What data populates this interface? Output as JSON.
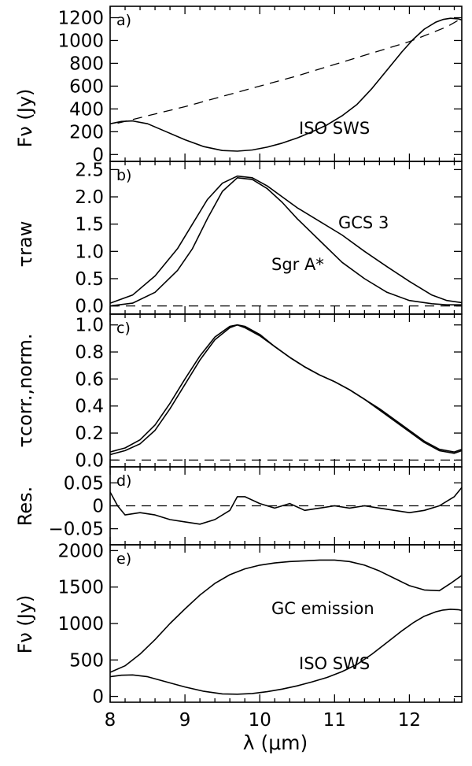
{
  "figure": {
    "xlabel": "λ (μm)",
    "x_ticks": [
      "8",
      "9",
      "10",
      "11",
      "12"
    ]
  },
  "chart_data": [
    {
      "type": "line",
      "panel": "a)",
      "ylabel": "Fν (Jy)",
      "xlim": [
        8,
        12.7
      ],
      "ylim": [
        -60,
        1300
      ],
      "yticks": [
        0,
        200,
        400,
        600,
        800,
        1000,
        1200
      ],
      "ytick_labels": [
        "0",
        "200",
        "400",
        "600",
        "800",
        "1000",
        "1200"
      ],
      "annotations": [
        "ISO SWS"
      ],
      "series": [
        {
          "name": "ISO SWS",
          "style": "solid",
          "x": [
            8.0,
            8.15,
            8.3,
            8.5,
            8.75,
            9.0,
            9.25,
            9.5,
            9.7,
            9.9,
            10.1,
            10.3,
            10.5,
            10.7,
            10.9,
            11.1,
            11.3,
            11.5,
            11.7,
            11.9,
            12.05,
            12.2,
            12.35,
            12.45,
            12.55,
            12.65,
            12.7
          ],
          "y": [
            270,
            290,
            295,
            270,
            200,
            130,
            70,
            35,
            30,
            40,
            65,
            100,
            145,
            200,
            260,
            340,
            440,
            580,
            740,
            900,
            1010,
            1100,
            1160,
            1185,
            1195,
            1190,
            1180
          ]
        },
        {
          "name": "",
          "style": "dashed",
          "x": [
            8.1,
            8.5,
            9.0,
            9.5,
            10.0,
            10.5,
            11.0,
            11.5,
            12.0,
            12.5,
            12.7
          ],
          "y": [
            275,
            340,
            420,
            510,
            600,
            690,
            790,
            890,
            990,
            1120,
            1195
          ]
        }
      ]
    },
    {
      "type": "line",
      "panel": "b)",
      "ylabel": "τraw",
      "xlim": [
        8,
        12.7
      ],
      "ylim": [
        -0.15,
        2.65
      ],
      "yticks": [
        0.0,
        0.5,
        1.0,
        1.5,
        2.0,
        2.5
      ],
      "ytick_labels": [
        "0.0",
        "0.5",
        "1.0",
        "1.5",
        "2.0",
        "2.5"
      ],
      "annotations": [
        "GCS 3",
        "Sgr A*"
      ],
      "series": [
        {
          "name": "GCS 3",
          "style": "solid",
          "x": [
            8.0,
            8.3,
            8.6,
            8.9,
            9.1,
            9.3,
            9.5,
            9.7,
            9.9,
            10.1,
            10.3,
            10.5,
            10.8,
            11.1,
            11.4,
            11.7,
            12.0,
            12.3,
            12.5,
            12.7
          ],
          "y": [
            0.05,
            0.2,
            0.55,
            1.05,
            1.5,
            1.95,
            2.25,
            2.38,
            2.35,
            2.2,
            2.0,
            1.8,
            1.55,
            1.3,
            1.0,
            0.72,
            0.45,
            0.2,
            0.1,
            0.06
          ]
        },
        {
          "name": "Sgr A*",
          "style": "solid",
          "x": [
            8.0,
            8.3,
            8.6,
            8.9,
            9.1,
            9.3,
            9.5,
            9.7,
            9.9,
            10.1,
            10.3,
            10.5,
            10.8,
            11.1,
            11.4,
            11.7,
            12.0,
            12.3,
            12.5,
            12.7
          ],
          "y": [
            0.0,
            0.05,
            0.25,
            0.65,
            1.05,
            1.6,
            2.1,
            2.35,
            2.32,
            2.15,
            1.9,
            1.6,
            1.2,
            0.8,
            0.5,
            0.25,
            0.1,
            0.04,
            0.02,
            0.02
          ]
        },
        {
          "name": "",
          "style": "dashed",
          "x": [
            8.0,
            12.7
          ],
          "y": [
            0.0,
            0.0
          ]
        }
      ]
    },
    {
      "type": "line",
      "panel": "c)",
      "ylabel": "τcorr.,norm.",
      "xlim": [
        8,
        12.7
      ],
      "ylim": [
        -0.05,
        1.08
      ],
      "yticks": [
        0.0,
        0.2,
        0.4,
        0.6,
        0.8,
        1.0
      ],
      "ytick_labels": [
        "0.0",
        "0.2",
        "0.4",
        "0.6",
        "0.8",
        "1.0"
      ],
      "annotations": [],
      "series": [
        {
          "name": "",
          "style": "solid",
          "x": [
            8.0,
            8.2,
            8.4,
            8.6,
            8.8,
            9.0,
            9.2,
            9.4,
            9.6,
            9.7,
            9.8,
            10.0,
            10.2,
            10.4,
            10.6,
            10.8,
            11.0,
            11.2,
            11.4,
            11.6,
            11.8,
            12.0,
            12.2,
            12.4,
            12.6,
            12.7
          ],
          "y": [
            0.06,
            0.09,
            0.15,
            0.26,
            0.42,
            0.6,
            0.77,
            0.91,
            0.99,
            1.0,
            0.99,
            0.93,
            0.84,
            0.76,
            0.69,
            0.63,
            0.58,
            0.52,
            0.45,
            0.38,
            0.3,
            0.22,
            0.14,
            0.08,
            0.06,
            0.08
          ]
        },
        {
          "name": "",
          "style": "solid",
          "x": [
            8.0,
            8.2,
            8.4,
            8.6,
            8.8,
            9.0,
            9.2,
            9.4,
            9.6,
            9.7,
            9.8,
            10.0,
            10.2,
            10.4,
            10.6,
            10.8,
            11.0,
            11.2,
            11.4,
            11.6,
            11.8,
            12.0,
            12.2,
            12.4,
            12.6,
            12.7
          ],
          "y": [
            0.04,
            0.07,
            0.12,
            0.22,
            0.38,
            0.56,
            0.74,
            0.89,
            0.98,
            1.0,
            0.98,
            0.92,
            0.84,
            0.76,
            0.69,
            0.63,
            0.58,
            0.52,
            0.45,
            0.37,
            0.29,
            0.21,
            0.13,
            0.07,
            0.05,
            0.07
          ]
        },
        {
          "name": "",
          "style": "dashed",
          "x": [
            8.0,
            12.7
          ],
          "y": [
            0.0,
            0.0
          ]
        }
      ]
    },
    {
      "type": "line",
      "panel": "d)",
      "ylabel": "Res.",
      "xlim": [
        8,
        12.7
      ],
      "ylim": [
        -0.085,
        0.085
      ],
      "yticks": [
        -0.05,
        0,
        0.05
      ],
      "ytick_labels": [
        "−0.05",
        "0",
        "0.05"
      ],
      "annotations": [],
      "series": [
        {
          "name": "",
          "style": "solid",
          "x": [
            8.0,
            8.1,
            8.2,
            8.4,
            8.6,
            8.8,
            9.0,
            9.2,
            9.4,
            9.6,
            9.7,
            9.8,
            10.0,
            10.2,
            10.4,
            10.6,
            10.8,
            11.0,
            11.2,
            11.4,
            11.6,
            11.8,
            12.0,
            12.2,
            12.4,
            12.6,
            12.7
          ],
          "y": [
            0.03,
            0.0,
            -0.02,
            -0.015,
            -0.02,
            -0.03,
            -0.035,
            -0.04,
            -0.03,
            -0.01,
            0.02,
            0.02,
            0.005,
            -0.005,
            0.005,
            -0.01,
            -0.005,
            0.0,
            -0.005,
            0.0,
            -0.005,
            -0.01,
            -0.015,
            -0.01,
            0.0,
            0.02,
            0.04
          ]
        },
        {
          "name": "",
          "style": "dashed",
          "x": [
            8.0,
            12.7
          ],
          "y": [
            0.0,
            0.0
          ]
        }
      ]
    },
    {
      "type": "line",
      "panel": "e)",
      "ylabel": "Fν (Jy)",
      "xlim": [
        8,
        12.7
      ],
      "ylim": [
        -80,
        2080
      ],
      "yticks": [
        0,
        500,
        1000,
        1500,
        2000
      ],
      "ytick_labels": [
        "0",
        "500",
        "1000",
        "1500",
        "2000"
      ],
      "annotations": [
        "GC emission",
        "ISO SWS"
      ],
      "series": [
        {
          "name": "GC emission",
          "style": "solid",
          "x": [
            8.0,
            8.2,
            8.4,
            8.6,
            8.8,
            9.0,
            9.2,
            9.4,
            9.6,
            9.8,
            10.0,
            10.2,
            10.4,
            10.6,
            10.8,
            11.0,
            11.2,
            11.4,
            11.6,
            11.8,
            12.0,
            12.2,
            12.4,
            12.55,
            12.7
          ],
          "y": [
            330,
            420,
            580,
            780,
            1000,
            1200,
            1390,
            1550,
            1670,
            1750,
            1800,
            1830,
            1850,
            1860,
            1870,
            1870,
            1850,
            1800,
            1720,
            1620,
            1520,
            1460,
            1450,
            1550,
            1660
          ]
        },
        {
          "name": "ISO SWS",
          "style": "solid",
          "x": [
            8.0,
            8.15,
            8.3,
            8.5,
            8.75,
            9.0,
            9.25,
            9.5,
            9.7,
            9.9,
            10.1,
            10.3,
            10.5,
            10.7,
            10.9,
            11.1,
            11.3,
            11.5,
            11.7,
            11.9,
            12.05,
            12.2,
            12.35,
            12.45,
            12.55,
            12.65,
            12.7
          ],
          "y": [
            270,
            290,
            295,
            270,
            200,
            130,
            70,
            35,
            30,
            40,
            65,
            100,
            145,
            200,
            260,
            340,
            440,
            580,
            740,
            900,
            1010,
            1100,
            1160,
            1185,
            1195,
            1190,
            1180
          ]
        }
      ]
    }
  ]
}
